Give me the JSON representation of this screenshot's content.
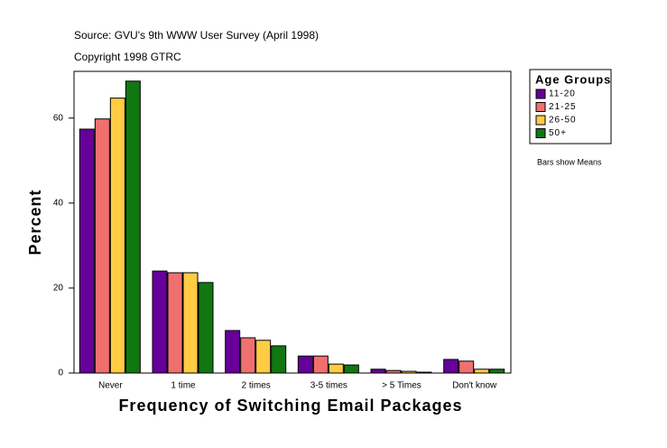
{
  "chart_data": {
    "type": "bar",
    "title": "Source: GVU's 9th WWW User Survey (April 1998)",
    "subtitle": "Copyright 1998 GTRC",
    "x_label": "Frequency of Switching Email Packages",
    "y_label": "Percent",
    "legend_title": "Age Groups",
    "note": "Bars show Means",
    "categories": [
      "Never",
      "1 time",
      "2 times",
      "3-5 times",
      "> 5 Times",
      "Don't know"
    ],
    "series": [
      {
        "name": "11-20",
        "color": "#660099",
        "values": [
          57.4,
          24.0,
          10.0,
          4.0,
          0.9,
          3.2
        ]
      },
      {
        "name": "21-25",
        "color": "#f07070",
        "values": [
          59.8,
          23.6,
          8.3,
          4.0,
          0.6,
          2.8
        ]
      },
      {
        "name": "26-50",
        "color": "#ffcc44",
        "values": [
          64.7,
          23.6,
          7.7,
          2.1,
          0.4,
          0.9
        ]
      },
      {
        "name": "50+",
        "color": "#117711",
        "values": [
          68.7,
          21.3,
          6.4,
          1.9,
          0.2,
          0.9
        ]
      }
    ],
    "ylim": [
      0,
      71
    ],
    "yticks": [
      0,
      20,
      40,
      60
    ],
    "grid": false,
    "legend": "right"
  }
}
